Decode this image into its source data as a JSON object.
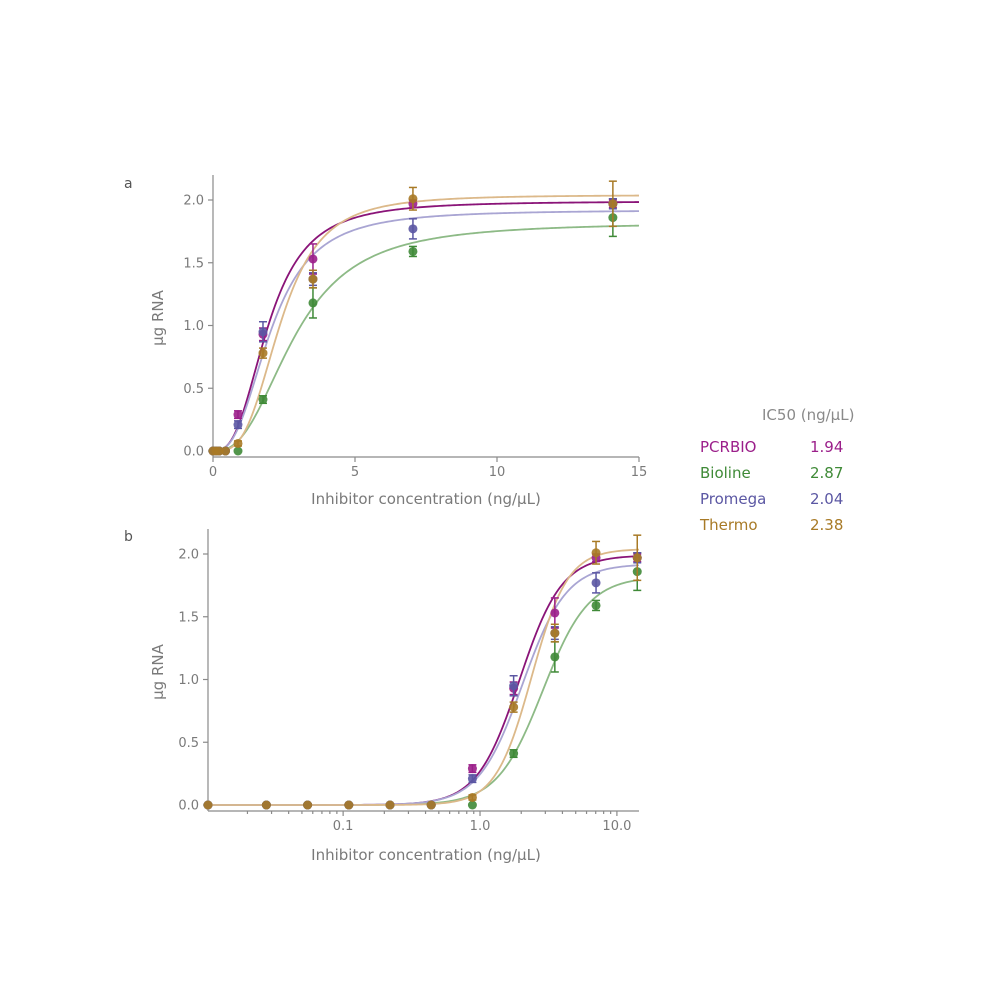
{
  "legend": {
    "title": "IC50 (ng/µL)",
    "entries": [
      {
        "name": "PCRBIO",
        "value": "1.94",
        "color": "#9b1f8a"
      },
      {
        "name": "Bioline",
        "value": "2.87",
        "color": "#3f8a37"
      },
      {
        "name": "Promega",
        "value": "2.04",
        "color": "#5b57a3"
      },
      {
        "name": "Thermo",
        "value": "2.38",
        "color": "#a87a26"
      }
    ]
  },
  "chart_data": [
    {
      "panel": "a",
      "type": "scatter",
      "xlabel": "Inhibitor concentration (ng/µL)",
      "ylabel": "µg RNA",
      "xscale": "linear",
      "xlim": [
        0,
        15
      ],
      "ylim": [
        0,
        2.0
      ],
      "xticks": [
        "0",
        "5",
        "10",
        "15"
      ],
      "xtick_values": [
        0,
        5,
        10,
        15
      ],
      "yticks": [
        "0.0",
        "0.5",
        "1.0",
        "1.5",
        "2.0"
      ],
      "ytick_values": [
        0,
        0.5,
        1.0,
        1.5,
        2.0
      ],
      "x": [
        0.0,
        0.11,
        0.22,
        0.44,
        0.88,
        1.76,
        3.52,
        7.04,
        14.08
      ],
      "series": [
        {
          "name": "PCRBIO",
          "color": "#9b1f8a",
          "fit_color": "#8a1478",
          "fit_opacity": 1.0,
          "values": [
            0.0,
            0.0,
            0.0,
            0.0,
            0.29,
            0.93,
            1.53,
            1.97,
            1.97
          ],
          "errors": [
            0,
            0,
            0,
            0,
            0.03,
            0.05,
            0.12,
            0.03,
            0.03
          ],
          "fit": {
            "top": 1.99,
            "ic50": 1.94,
            "hill": 2.8
          }
        },
        {
          "name": "Bioline",
          "color": "#3f8a37",
          "fit_color": "#8dba86",
          "fit_opacity": 1.0,
          "values": [
            0.0,
            0.0,
            0.0,
            0.0,
            0.0,
            0.41,
            1.18,
            1.59,
            1.86
          ],
          "errors": [
            0,
            0,
            0,
            0,
            0.01,
            0.03,
            0.12,
            0.04,
            0.15
          ],
          "fit": {
            "top": 1.82,
            "ic50": 2.87,
            "hill": 2.6
          }
        },
        {
          "name": "Promega",
          "color": "#5b57a3",
          "fit_color": "#a9a5d3",
          "fit_opacity": 1.0,
          "values": [
            0.0,
            0.0,
            0.0,
            0.0,
            0.21,
            0.95,
            1.37,
            1.77,
            1.97
          ],
          "errors": [
            0,
            0,
            0,
            0,
            0.03,
            0.08,
            0.05,
            0.08,
            0.04
          ],
          "fit": {
            "top": 1.92,
            "ic50": 2.04,
            "hill": 2.7
          }
        },
        {
          "name": "Thermo",
          "color": "#a87a26",
          "fit_color": "#dcb98a",
          "fit_opacity": 1.0,
          "values": [
            0.0,
            0.0,
            0.0,
            0.0,
            0.06,
            0.78,
            1.37,
            2.01,
            1.97
          ],
          "errors": [
            0,
            0,
            0,
            0,
            0.02,
            0.04,
            0.07,
            0.09,
            0.18
          ],
          "fit": {
            "top": 2.04,
            "ic50": 2.38,
            "hill": 3.3
          }
        }
      ]
    },
    {
      "panel": "b",
      "type": "scatter",
      "xlabel": "Inhibitor concentration (ng/µL)",
      "ylabel": "µg RNA",
      "xscale": "log",
      "xlim": [
        0.0103,
        14.5
      ],
      "ylim": [
        0,
        2.0
      ],
      "xticks": [
        "0.1",
        "1.0",
        "10.0"
      ],
      "xtick_values": [
        0.1,
        1.0,
        10.0
      ],
      "yticks": [
        "0.0",
        "0.5",
        "1.0",
        "1.5",
        "2.0"
      ],
      "ytick_values": [
        0,
        0.5,
        1.0,
        1.5,
        2.0
      ],
      "x": [
        0.0103,
        0.0275,
        0.055,
        0.11,
        0.22,
        0.44,
        0.88,
        1.76,
        3.52,
        7.04,
        14.08
      ],
      "series": [
        {
          "name": "PCRBIO",
          "color": "#9b1f8a",
          "fit_color": "#8a1478",
          "fit_opacity": 1.0,
          "values": [
            0.0,
            0.0,
            0.0,
            0.0,
            0.0,
            0.0,
            0.29,
            0.93,
            1.53,
            1.97,
            1.97
          ],
          "errors": [
            0,
            0,
            0,
            0,
            0,
            0,
            0.03,
            0.05,
            0.12,
            0.03,
            0.03
          ],
          "fit": {
            "top": 1.99,
            "ic50": 1.94,
            "hill": 2.8
          }
        },
        {
          "name": "Bioline",
          "color": "#3f8a37",
          "fit_color": "#8dba86",
          "fit_opacity": 1.0,
          "values": [
            0.0,
            0.0,
            0.0,
            0.0,
            0.0,
            0.0,
            0.0,
            0.41,
            1.18,
            1.59,
            1.86
          ],
          "errors": [
            0,
            0,
            0,
            0,
            0,
            0,
            0.01,
            0.03,
            0.12,
            0.04,
            0.15
          ],
          "fit": {
            "top": 1.82,
            "ic50": 2.87,
            "hill": 2.6
          }
        },
        {
          "name": "Promega",
          "color": "#5b57a3",
          "fit_color": "#a9a5d3",
          "fit_opacity": 1.0,
          "values": [
            0.0,
            0.0,
            0.0,
            0.0,
            0.0,
            0.0,
            0.21,
            0.95,
            1.37,
            1.77,
            1.97
          ],
          "errors": [
            0,
            0,
            0,
            0,
            0,
            0,
            0.03,
            0.08,
            0.05,
            0.08,
            0.04
          ],
          "fit": {
            "top": 1.92,
            "ic50": 2.04,
            "hill": 2.7
          }
        },
        {
          "name": "Thermo",
          "color": "#a87a26",
          "fit_color": "#dcb98a",
          "fit_opacity": 1.0,
          "values": [
            0.0,
            0.0,
            0.0,
            0.0,
            0.0,
            0.0,
            0.06,
            0.78,
            1.37,
            2.01,
            1.97
          ],
          "errors": [
            0,
            0,
            0,
            0,
            0,
            0,
            0.02,
            0.04,
            0.07,
            0.09,
            0.18
          ],
          "fit": {
            "top": 2.04,
            "ic50": 2.38,
            "hill": 3.3
          }
        }
      ]
    }
  ]
}
